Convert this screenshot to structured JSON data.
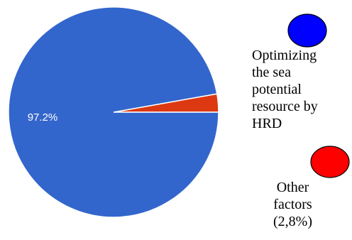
{
  "chart_data": {
    "type": "pie",
    "slices": [
      {
        "label_lines": [
          "Optimizing",
          "the sea",
          "potential",
          "resource by",
          "HRD"
        ],
        "value": 97.2,
        "data_label": "97.2%",
        "color": "#3366cc"
      },
      {
        "label_lines": [
          "Other",
          "factors",
          "(2,8%)"
        ],
        "value": 2.8,
        "data_label": "",
        "color": "#dc3912"
      }
    ],
    "legend_markers": [
      {
        "color": "#0000ff"
      },
      {
        "color": "#ff0000"
      }
    ],
    "slice_border_color": "#ffffff",
    "data_label_color": "#ffffff"
  }
}
